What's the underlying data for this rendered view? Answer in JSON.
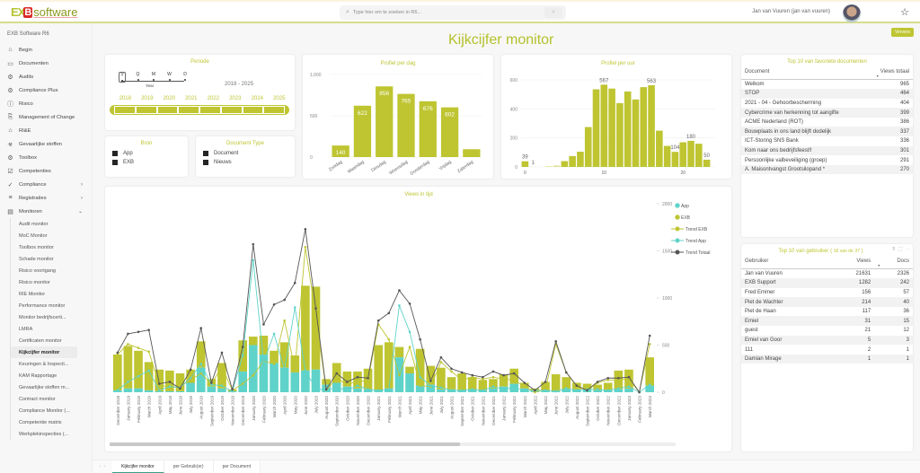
{
  "app": {
    "logo_a": "EX",
    "logo_b": "B",
    "logo_c": "software",
    "org_name": "EXB Software R6",
    "search_placeholder": "Type hier om te zoeken in R6...",
    "search_clear": "×",
    "user_name": "Jan van Vuuren (jan van vuuren)",
    "favorite_icon": "star-icon",
    "refresh_label": "Ververs"
  },
  "sidebar": {
    "items": [
      {
        "label": "Begin",
        "icon": "⌂"
      },
      {
        "label": "Documenten",
        "icon": "▭"
      },
      {
        "label": "Audits",
        "icon": "⚙"
      },
      {
        "label": "Compliance Plus",
        "icon": "⚙"
      },
      {
        "label": "Risico",
        "icon": "ⓘ"
      },
      {
        "label": "Management of Change",
        "icon": "⎘"
      },
      {
        "label": "RI&E",
        "icon": "⌂"
      },
      {
        "label": "Gevaarlijke stoffen",
        "icon": "☣"
      },
      {
        "label": "Toolbox",
        "icon": "⚙"
      },
      {
        "label": "Competenties",
        "icon": "☑"
      },
      {
        "label": "Compliance",
        "icon": "✓",
        "chevron": "›"
      },
      {
        "label": "Registraties",
        "icon": "≡",
        "chevron": "›"
      },
      {
        "label": "Monitoren",
        "icon": "▤",
        "chevron": "⌄"
      }
    ],
    "sub_items": [
      "Audit monitor",
      "MoC Monitor",
      "Toolbox monitor",
      "Schade monitor",
      "Risico voortgang",
      "Risico monitor",
      "RIE Monitor",
      "Performance monitor",
      "Monitor bedrijfscerti...",
      "LMRA",
      "Certificaten monitor",
      "Kijkcijfer monitor",
      "Keuringen & Inspecti...",
      "KAM Rapportage",
      "Gevaarlijke stoffen m...",
      "Contract monitor",
      "Compliance Monitor (...",
      "Competentie matrix",
      "Werkplekinspecties (..."
    ],
    "active_sub": "Kijkcijfer monitor"
  },
  "page": {
    "title": "Kijkcijfer monitor"
  },
  "periode": {
    "title": "Periode",
    "granularity": [
      "Y",
      "Q",
      "M",
      "W",
      "D"
    ],
    "granularity_selected": "Y",
    "granularity_label": "Year",
    "range_label": "2018 - 2025",
    "years": [
      "2018",
      "2019",
      "2020",
      "2021",
      "2022",
      "2023",
      "2024",
      "2025"
    ]
  },
  "bron": {
    "title": "Bron",
    "items": [
      "App",
      "EXB"
    ]
  },
  "doctype": {
    "title": "Document Type",
    "items": [
      "Document",
      "Nieuws"
    ]
  },
  "colors": {
    "accent": "#bec531",
    "exb": "#bec531",
    "app": "#5fd3c9",
    "total": "#555555"
  },
  "top_docs": {
    "title": "Top 10 van favoriete documenten",
    "col_document": "Document",
    "col_views": "Views totaal",
    "rows": [
      {
        "doc": "Welkom",
        "views": "965"
      },
      {
        "doc": "STOP",
        "views": "464"
      },
      {
        "doc": "2021 - 04 - Gehoorbescherming",
        "views": "404"
      },
      {
        "doc": "Cybercrime van herkenning tot aangifte",
        "views": "399"
      },
      {
        "doc": "ACME Nederland (ROT)",
        "views": "386"
      },
      {
        "doc": "Bouwplaats in ons land blijft dodelijk",
        "views": "337"
      },
      {
        "doc": "ICT-Storing SNS Bank",
        "views": "336"
      },
      {
        "doc": "Kom naar ons bedrijfsfeest!!",
        "views": "301"
      },
      {
        "doc": "Persoonlijke valbeveiliging (groep)",
        "views": "291"
      },
      {
        "doc": "A. Maisontvangst Grootsilopand *",
        "views": "270"
      }
    ]
  },
  "top_users": {
    "title_prefix": "Top 10 van gebruiker (",
    "title_count": "16 van de",
    "title_total": "37",
    "title_suffix": ")",
    "col_user": "Gebruiker",
    "col_views": "Views",
    "col_docs": "Docs",
    "rows": [
      {
        "user": "Jan van Vuuren",
        "views": "21631",
        "docs": "2326"
      },
      {
        "user": "EXB Support",
        "views": "1282",
        "docs": "242"
      },
      {
        "user": "Fred Emmer",
        "views": "156",
        "docs": "57"
      },
      {
        "user": "Piet de Wachter",
        "views": "214",
        "docs": "40"
      },
      {
        "user": "Piet de Haan",
        "views": "117",
        "docs": "36"
      },
      {
        "user": "Emiel",
        "views": "31",
        "docs": "15"
      },
      {
        "user": "guest",
        "views": "21",
        "docs": "12"
      },
      {
        "user": "Emiel van Goor",
        "views": "5",
        "docs": "3"
      },
      {
        "user": "111",
        "views": "2",
        "docs": "1"
      },
      {
        "user": "Damian Mirage",
        "views": "1",
        "docs": "1"
      }
    ]
  },
  "tabs": [
    {
      "label": "Kijkcijfer monitor",
      "active": true
    },
    {
      "label": "per Gebruik(er)",
      "active": false
    },
    {
      "label": "per Document",
      "active": false
    }
  ],
  "chart_data": [
    {
      "type": "bar",
      "title": "Profiel per dag",
      "categories": [
        "Zondag",
        "Maandag",
        "Dinsdag",
        "Woensdag",
        "Donderdag",
        "Vrijdag",
        "Zaterdag"
      ],
      "values": [
        140,
        622,
        856,
        765,
        676,
        602,
        95
      ],
      "labels": [
        "140",
        "622",
        "856",
        "765",
        "676",
        "602",
        ""
      ],
      "ylim": [
        0,
        1000
      ],
      "yticks": [
        "0",
        "500",
        "1,000"
      ],
      "grid": true
    },
    {
      "type": "bar",
      "title": "Profiel per uur",
      "categories": [
        0,
        1,
        2,
        3,
        4,
        5,
        6,
        7,
        8,
        9,
        10,
        11,
        12,
        13,
        14,
        15,
        16,
        17,
        18,
        19,
        20,
        21,
        22,
        23
      ],
      "values": [
        39,
        1,
        0,
        5,
        10,
        40,
        75,
        105,
        275,
        535,
        567,
        540,
        440,
        520,
        465,
        550,
        563,
        250,
        145,
        104,
        170,
        180,
        160,
        50
      ],
      "labels": {
        "0": "39",
        "1": "1",
        "10": "567",
        "16": "563",
        "19": "104",
        "21": "180",
        "23": "50"
      },
      "ylim": [
        0,
        600
      ],
      "yticks": [
        "0",
        "200",
        "400",
        "600"
      ],
      "xticks": [
        "0",
        "10",
        "20"
      ],
      "grid": true
    },
    {
      "type": "bar",
      "title": "Views in tijd",
      "stacked": true,
      "legend": [
        "App",
        "EXB",
        "Trend EXB",
        "Trend App",
        "Trend Totaal"
      ],
      "legend_position": "top-right",
      "ylim": [
        0,
        2000
      ],
      "yticks": [
        "0",
        "500",
        "1000",
        "1500",
        "2000"
      ],
      "categories": [
        "December 2018",
        "January 2019",
        "February 2019",
        "March 2019",
        "April 2019",
        "May 2019",
        "June 2019",
        "July 2019",
        "August 2019",
        "September 2019",
        "October 2019",
        "November 2019",
        "December 2019",
        "January 2020",
        "February 2020",
        "March 2020",
        "April 2020",
        "May 2020",
        "June 2020",
        "July 2020",
        "August 2020",
        "September 2020",
        "October 2020",
        "November 2020",
        "December 2020",
        "January 2021",
        "February 2021",
        "March 2021",
        "April 2021",
        "May 2021",
        "June 2021",
        "July 2021",
        "August 2021",
        "September 2021",
        "October 2021",
        "November 2021",
        "December 2021",
        "January 2022",
        "February 2022",
        "March 2022",
        "April 2022",
        "May 2022",
        "June 2022",
        "July 2022",
        "August 2022",
        "September 2022",
        "October 2022",
        "November 2022",
        "December 2022",
        "January 2023",
        "February 2023",
        "March 2023"
      ],
      "series": [
        {
          "name": "App",
          "values": [
            20,
            40,
            40,
            20,
            10,
            10,
            10,
            100,
            260,
            60,
            40,
            10,
            220,
            500,
            400,
            310,
            260,
            210,
            230,
            240,
            80,
            100,
            60,
            40,
            30,
            20,
            40,
            370,
            200,
            70,
            80,
            30,
            30,
            20,
            30,
            20,
            40,
            60,
            90,
            40,
            20,
            20,
            10,
            30,
            30,
            30,
            20,
            20,
            30,
            40,
            0,
            70
          ]
        },
        {
          "name": "EXB",
          "values": [
            380,
            450,
            400,
            300,
            230,
            220,
            190,
            140,
            280,
            80,
            270,
            20,
            330,
            90,
            200,
            130,
            270,
            180,
            900,
            880,
            60,
            210,
            160,
            180,
            220,
            480,
            490,
            110,
            70,
            390,
            200,
            230,
            130,
            180,
            130,
            110,
            100,
            130,
            160,
            60,
            20,
            90,
            180,
            130,
            70,
            60,
            60,
            80,
            200,
            200,
            0,
            300
          ]
        },
        {
          "name": "Trend EXB",
          "values": [
            400,
            510,
            470,
            430,
            80,
            50,
            60,
            130,
            200,
            90,
            270,
            20,
            90,
            180,
            330,
            300,
            760,
            250,
            1540,
            810,
            20,
            150,
            80,
            120,
            120,
            720,
            560,
            180,
            480,
            70,
            60,
            320,
            220,
            130,
            160,
            140,
            160,
            140,
            130,
            60,
            0,
            30,
            510,
            210,
            60,
            20,
            100,
            130,
            130,
            140,
            0,
            510
          ]
        },
        {
          "name": "Trend App",
          "values": [
            20,
            110,
            170,
            230,
            20,
            60,
            50,
            150,
            300,
            80,
            70,
            10,
            390,
            1400,
            320,
            620,
            240,
            900,
            230,
            40,
            20,
            50,
            20,
            70,
            30,
            20,
            30,
            920,
            640,
            160,
            70,
            50,
            20,
            20,
            30,
            20,
            60,
            30,
            50,
            20,
            20,
            20,
            10,
            40,
            20,
            30,
            30,
            20,
            40,
            60,
            0,
            80
          ]
        },
        {
          "name": "Trend Totaal",
          "values": [
            420,
            620,
            640,
            660,
            90,
            110,
            40,
            240,
            680,
            100,
            420,
            30,
            480,
            1570,
            720,
            930,
            980,
            1160,
            1730,
            890,
            30,
            200,
            110,
            160,
            150,
            760,
            840,
            1080,
            940,
            560,
            120,
            370,
            250,
            210,
            180,
            160,
            220,
            180,
            200,
            100,
            20,
            110,
            540,
            210,
            70,
            20,
            110,
            150,
            150,
            160,
            0,
            600
          ]
        }
      ]
    }
  ]
}
